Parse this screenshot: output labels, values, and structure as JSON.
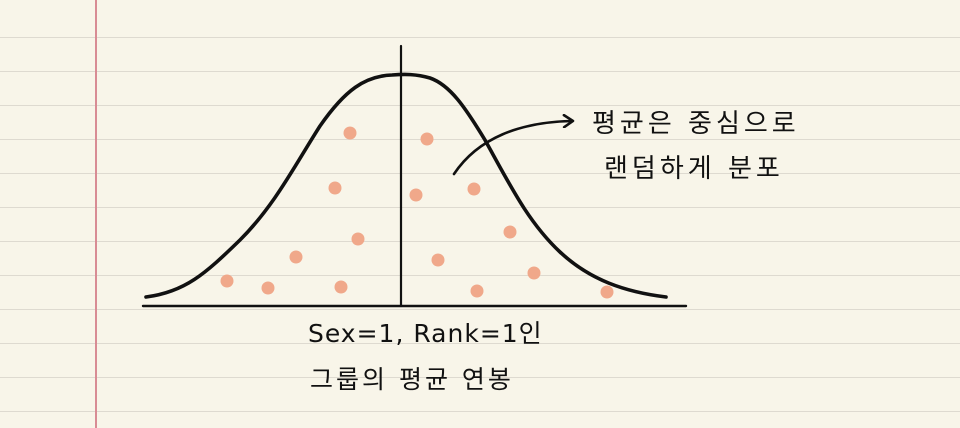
{
  "annotation": {
    "line1": "평균은 중심으로",
    "line2": "랜덤하게 분포"
  },
  "caption": {
    "line1": "Sex=1, Rank=1인",
    "line2": "그룹의 평균 연봉"
  },
  "colors": {
    "paper": "#f8f5e9",
    "rule_line": "#dedad0",
    "margin_line": "#d88c94",
    "ink": "#111111",
    "dots": "#f0a88a"
  }
}
